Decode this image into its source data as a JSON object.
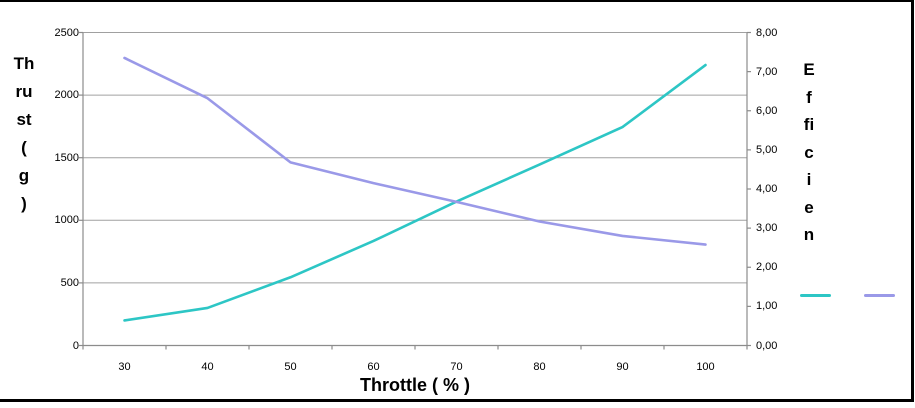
{
  "chart_data": {
    "type": "line",
    "title": "",
    "x_title": "Throttle ( % )",
    "categories": [
      30,
      40,
      50,
      60,
      70,
      80,
      90,
      100
    ],
    "x_tick_labels": [
      "30",
      "40",
      "50",
      "60",
      "70",
      "80",
      "90",
      "100"
    ],
    "series": [
      {
        "name": "thrust",
        "axis": "left",
        "color": "#2dc6c5",
        "values": [
          200,
          300,
          545,
          835,
          1150,
          1445,
          1745,
          2240
        ]
      },
      {
        "name": "efficiency",
        "axis": "right",
        "color": "#9a99e8",
        "values": [
          7.35,
          6.32,
          4.68,
          4.15,
          3.67,
          3.17,
          2.8,
          2.58
        ]
      }
    ],
    "left_axis": {
      "label_text": "Thrust ( g )",
      "label_lines": "Th\nru\nst\n(\ng\n)",
      "min": 0,
      "max": 2500,
      "step": 500,
      "tick_labels": [
        "0",
        "500",
        "1000",
        "1500",
        "2000",
        "2500"
      ]
    },
    "right_axis": {
      "label_text": "Efficien",
      "label_lines": "E\nf\nfi\nc\ni\ne\nn",
      "min": 0,
      "max": 8,
      "step": 1,
      "tick_labels": [
        "0,00",
        "1,00",
        "2,00",
        "3,00",
        "4,00",
        "5,00",
        "6,00",
        "7,00",
        "8,00"
      ]
    },
    "grid": true,
    "legend": {
      "position": "right",
      "entries": [
        {
          "series": "thrust",
          "color": "#2dc6c5",
          "label": ""
        },
        {
          "series": "efficiency",
          "color": "#9a99e8",
          "label": ""
        }
      ]
    }
  },
  "colors": {
    "grid": "#a0a0a0",
    "axis": "#8c8c8c",
    "frame": "#000000",
    "text": "#000000"
  }
}
